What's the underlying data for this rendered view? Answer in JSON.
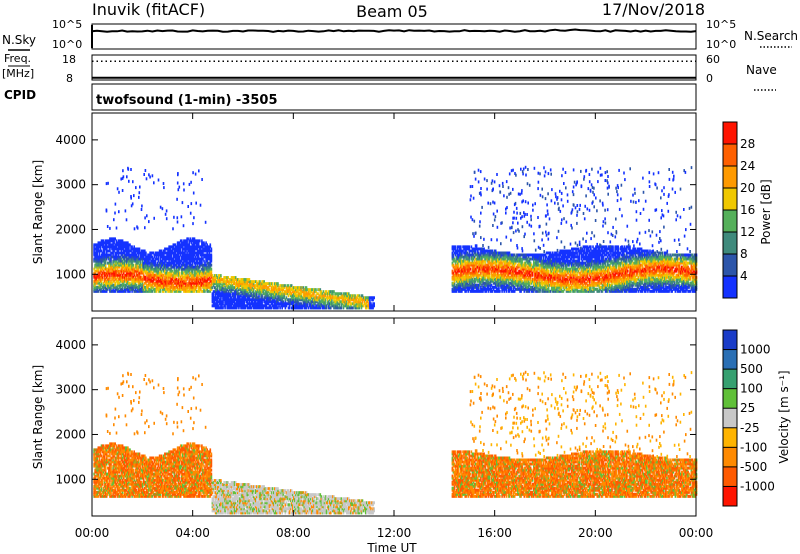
{
  "header": {
    "station": "Inuvik (fitACF)",
    "beam": "Beam 05",
    "date": "17/Nov/2018"
  },
  "left_labels": {
    "nsky": "N.Sky",
    "freq": "Freq.",
    "freq_unit": "[MHz]",
    "cpid": "CPID"
  },
  "right_labels": {
    "nsearch": "N.Search",
    "nave": "Nave"
  },
  "cpid_text": "twofsound (1-min) -3505",
  "colors": {
    "power": [
      "#1432ff",
      "#2c55aa",
      "#3f8a7c",
      "#55b05a",
      "#f0c800",
      "#ff9a00",
      "#ff6000",
      "#ff1400"
    ],
    "velocity": [
      "#1a3cc8",
      "#2a6fb4",
      "#36a070",
      "#60c038",
      "#c8c8c8",
      "#ffb400",
      "#ff8a00",
      "#ff5a00",
      "#ff1400"
    ]
  },
  "chart_data": [
    {
      "type": "line",
      "title": "N.Sky / N.Search",
      "x_ticks": [],
      "y_left_ticks": [
        "10^5",
        "10^0"
      ],
      "y_right_ticks": [
        "10^5",
        "10^0"
      ],
      "series": [
        {
          "name": "N.Sky",
          "style": "solid",
          "level": "near 10^5 (roughly constant ~1.6e4)"
        },
        {
          "name": "N.Search",
          "style": "dotted"
        }
      ]
    },
    {
      "type": "line",
      "title": "Freq. [MHz] / Nave",
      "y_left_ticks": [
        "18",
        "8"
      ],
      "y_right_ticks": [
        "60",
        "0"
      ],
      "series": [
        {
          "name": "Freq.",
          "style": "solid",
          "approx_value": 8.9,
          "units": "MHz"
        },
        {
          "name": "Nave",
          "style": "dotted",
          "approx_value": 45
        }
      ]
    },
    {
      "type": "heatmap",
      "title": "Power",
      "ylabel": "Slant Range [km]",
      "ylim": [
        180,
        4600
      ],
      "y_ticks": [
        1000,
        2000,
        3000,
        4000
      ],
      "colorbar": {
        "label": "Power [dB]",
        "ticks": [
          4,
          8,
          12,
          16,
          20,
          24,
          28
        ],
        "range": [
          0,
          32
        ]
      },
      "regions": [
        {
          "t": [
            0.0,
            4.7
          ],
          "range_km": [
            700,
            1800
          ],
          "level": "strong (up to ~30 dB) at 700-1200 km, weaker above"
        },
        {
          "t": [
            4.7,
            11.0
          ],
          "range_km": [
            300,
            1000
          ],
          "level": "mixed, strongest near 300-450 km around 09:00-11:00"
        },
        {
          "t": [
            14.3,
            24.0
          ],
          "range_km": [
            800,
            1500
          ],
          "level": "strong (~20-30 dB) band near 1000 km"
        },
        {
          "t": [
            16.0,
            22.0
          ],
          "range_km": [
            1500,
            3400
          ],
          "level": "sparse weak echoes (~4-8 dB)"
        }
      ]
    },
    {
      "type": "heatmap",
      "title": "Velocity",
      "ylabel": "Slant Range [km]",
      "xlabel": "Time UT",
      "ylim": [
        180,
        4600
      ],
      "y_ticks": [
        1000,
        2000,
        3000,
        4000
      ],
      "x_ticks": [
        "00:00",
        "04:00",
        "08:00",
        "12:00",
        "16:00",
        "20:00",
        "00:00"
      ],
      "colorbar": {
        "label": "Velocity [m s⁻¹]",
        "ticks": [
          1000,
          500,
          100,
          25,
          -25,
          -100,
          -500,
          -1000
        ]
      },
      "regions": [
        {
          "t": [
            0.0,
            4.7
          ],
          "range_km": [
            700,
            1800
          ],
          "level": "mostly -100 to -500 m/s"
        },
        {
          "t": [
            4.7,
            11.0
          ],
          "range_km": [
            300,
            1000
          ],
          "level": "ground scatter (-25 to 25 m/s) with green edges"
        },
        {
          "t": [
            14.3,
            24.0
          ],
          "range_km": [
            700,
            1600
          ],
          "level": "mostly -100 to -500 m/s with green patches"
        }
      ]
    }
  ]
}
